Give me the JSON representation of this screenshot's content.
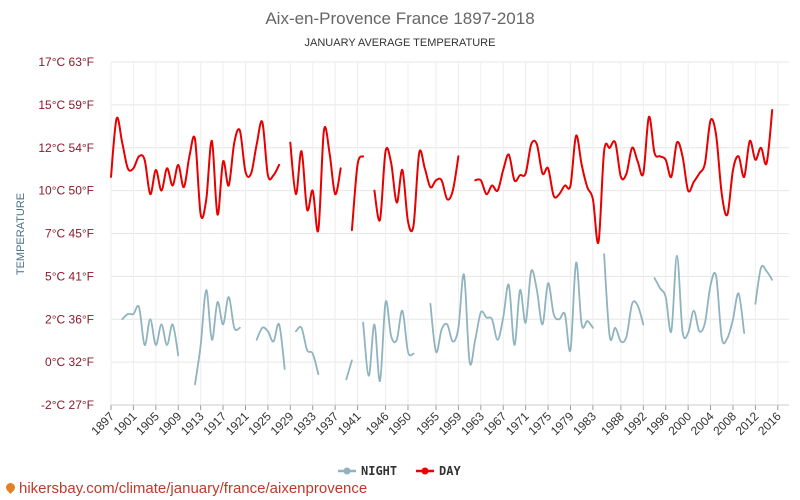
{
  "chart_data": {
    "type": "line",
    "title": "Aix-en-Provence France 1897-2018",
    "subtitle": "JANUARY AVERAGE TEMPERATURE",
    "ylabel": "TEMPERATURE",
    "ylim": [
      -2.5,
      17.5
    ],
    "yticks": [
      {
        "value": -2.5,
        "label": "-2°C 27°F"
      },
      {
        "value": 0,
        "label": "0°C 32°F"
      },
      {
        "value": 2.5,
        "label": "2°C 36°F"
      },
      {
        "value": 5,
        "label": "5°C 41°F"
      },
      {
        "value": 7.5,
        "label": "7°C 45°F"
      },
      {
        "value": 10,
        "label": "10°C 50°F"
      },
      {
        "value": 12.5,
        "label": "12°C 54°F"
      },
      {
        "value": 15,
        "label": "15°C 59°F"
      },
      {
        "value": 17.5,
        "label": "17°C 63°F"
      }
    ],
    "xlim": [
      1897,
      2018
    ],
    "xticks": [
      1897,
      1901,
      1905,
      1909,
      1913,
      1917,
      1921,
      1925,
      1929,
      1933,
      1937,
      1941,
      1946,
      1950,
      1955,
      1959,
      1963,
      1967,
      1971,
      1975,
      1979,
      1983,
      1988,
      1992,
      1996,
      2000,
      2004,
      2008,
      2012,
      2016
    ],
    "grid": true,
    "legend_position": "bottom-center",
    "series": [
      {
        "name": "NIGHT",
        "color": "#8fb3bf",
        "points": [
          [
            1899,
            2.5
          ],
          [
            1900,
            2.8
          ],
          [
            1901,
            2.8
          ],
          [
            1902,
            3.2
          ],
          [
            1903,
            1.0
          ],
          [
            1904,
            2.5
          ],
          [
            1905,
            1.0
          ],
          [
            1906,
            2.2
          ],
          [
            1907,
            1.0
          ],
          [
            1908,
            2.2
          ],
          [
            1909,
            0.4
          ],
          [
            1912,
            -1.3
          ],
          [
            1913,
            1.0
          ],
          [
            1914,
            4.2
          ],
          [
            1915,
            1.3
          ],
          [
            1916,
            3.5
          ],
          [
            1917,
            2.2
          ],
          [
            1918,
            3.8
          ],
          [
            1919,
            2.0
          ],
          [
            1920,
            2.0
          ],
          [
            1923,
            1.3
          ],
          [
            1924,
            2.0
          ],
          [
            1925,
            1.8
          ],
          [
            1926,
            1.2
          ],
          [
            1927,
            2.2
          ],
          [
            1928,
            -0.4
          ],
          [
            1930,
            1.8
          ],
          [
            1931,
            2.0
          ],
          [
            1932,
            0.7
          ],
          [
            1933,
            0.5
          ],
          [
            1934,
            -0.7
          ],
          [
            1939,
            -1.0
          ],
          [
            1940,
            0.1
          ],
          [
            1942,
            2.3
          ],
          [
            1943,
            -0.8
          ],
          [
            1944,
            2.2
          ],
          [
            1945,
            -1.1
          ],
          [
            1946,
            3.5
          ],
          [
            1947,
            1.5
          ],
          [
            1948,
            1.3
          ],
          [
            1949,
            3.0
          ],
          [
            1950,
            0.6
          ],
          [
            1951,
            0.5
          ],
          [
            1954,
            3.4
          ],
          [
            1955,
            0.6
          ],
          [
            1956,
            1.9
          ],
          [
            1957,
            2.2
          ],
          [
            1958,
            1.2
          ],
          [
            1959,
            2.0
          ],
          [
            1960,
            5.1
          ],
          [
            1961,
            0.0
          ],
          [
            1962,
            1.3
          ],
          [
            1963,
            2.9
          ],
          [
            1964,
            2.6
          ],
          [
            1965,
            2.5
          ],
          [
            1966,
            1.3
          ],
          [
            1967,
            2.6
          ],
          [
            1968,
            4.5
          ],
          [
            1969,
            1.0
          ],
          [
            1970,
            4.2
          ],
          [
            1971,
            2.3
          ],
          [
            1972,
            5.3
          ],
          [
            1973,
            4.2
          ],
          [
            1974,
            2.2
          ],
          [
            1975,
            4.6
          ],
          [
            1976,
            2.8
          ],
          [
            1977,
            2.5
          ],
          [
            1978,
            2.8
          ],
          [
            1979,
            0.7
          ],
          [
            1980,
            5.8
          ],
          [
            1981,
            2.2
          ],
          [
            1982,
            2.4
          ],
          [
            1983,
            2.0
          ],
          [
            1985,
            6.3
          ],
          [
            1986,
            1.5
          ],
          [
            1987,
            2.0
          ],
          [
            1988,
            1.2
          ],
          [
            1989,
            1.5
          ],
          [
            1990,
            3.4
          ],
          [
            1991,
            3.3
          ],
          [
            1992,
            2.2
          ],
          [
            1994,
            4.9
          ],
          [
            1995,
            4.3
          ],
          [
            1996,
            3.8
          ],
          [
            1997,
            1.8
          ],
          [
            1998,
            6.2
          ],
          [
            1999,
            1.8
          ],
          [
            2000,
            1.7
          ],
          [
            2001,
            3.0
          ],
          [
            2002,
            1.8
          ],
          [
            2003,
            2.3
          ],
          [
            2004,
            4.5
          ],
          [
            2005,
            5.0
          ],
          [
            2006,
            1.4
          ],
          [
            2007,
            1.4
          ],
          [
            2008,
            2.5
          ],
          [
            2009,
            4.0
          ],
          [
            2010,
            1.7
          ],
          [
            2012,
            3.4
          ],
          [
            2013,
            5.5
          ],
          [
            2014,
            5.3
          ],
          [
            2015,
            4.8
          ]
        ]
      },
      {
        "name": "DAY",
        "color": "#e60000",
        "points": [
          [
            1897,
            10.8
          ],
          [
            1898,
            14.2
          ],
          [
            1899,
            12.8
          ],
          [
            1900,
            11.3
          ],
          [
            1901,
            11.3
          ],
          [
            1902,
            12.0
          ],
          [
            1903,
            11.8
          ],
          [
            1904,
            9.8
          ],
          [
            1905,
            11.2
          ],
          [
            1906,
            10.0
          ],
          [
            1907,
            11.3
          ],
          [
            1908,
            10.3
          ],
          [
            1909,
            11.5
          ],
          [
            1910,
            10.2
          ],
          [
            1911,
            12.0
          ],
          [
            1912,
            13.0
          ],
          [
            1913,
            8.6
          ],
          [
            1914,
            9.5
          ],
          [
            1915,
            12.9
          ],
          [
            1916,
            8.6
          ],
          [
            1917,
            11.7
          ],
          [
            1918,
            10.3
          ],
          [
            1919,
            12.8
          ],
          [
            1920,
            13.5
          ],
          [
            1921,
            11.1
          ],
          [
            1922,
            11.0
          ],
          [
            1923,
            12.7
          ],
          [
            1924,
            14.0
          ],
          [
            1925,
            10.9
          ],
          [
            1926,
            10.9
          ],
          [
            1927,
            11.5
          ],
          [
            1929,
            12.8
          ],
          [
            1930,
            9.8
          ],
          [
            1931,
            12.3
          ],
          [
            1932,
            8.9
          ],
          [
            1933,
            10.0
          ],
          [
            1934,
            7.7
          ],
          [
            1935,
            13.5
          ],
          [
            1936,
            12.2
          ],
          [
            1937,
            9.8
          ],
          [
            1938,
            11.3
          ],
          [
            1940,
            7.7
          ],
          [
            1941,
            11.5
          ],
          [
            1942,
            12.0
          ],
          [
            1944,
            10.0
          ],
          [
            1945,
            8.3
          ],
          [
            1946,
            12.3
          ],
          [
            1947,
            11.6
          ],
          [
            1948,
            9.3
          ],
          [
            1949,
            11.2
          ],
          [
            1950,
            8.2
          ],
          [
            1951,
            8.0
          ],
          [
            1952,
            12.2
          ],
          [
            1953,
            11.3
          ],
          [
            1954,
            10.2
          ],
          [
            1955,
            10.6
          ],
          [
            1956,
            10.6
          ],
          [
            1957,
            9.5
          ],
          [
            1958,
            10.0
          ],
          [
            1959,
            12.0
          ],
          [
            1962,
            10.6
          ],
          [
            1963,
            10.6
          ],
          [
            1964,
            9.8
          ],
          [
            1965,
            10.3
          ],
          [
            1966,
            10.0
          ],
          [
            1967,
            11.2
          ],
          [
            1968,
            12.1
          ],
          [
            1969,
            10.6
          ],
          [
            1970,
            10.9
          ],
          [
            1971,
            11.0
          ],
          [
            1972,
            12.7
          ],
          [
            1973,
            12.7
          ],
          [
            1974,
            11.0
          ],
          [
            1975,
            11.3
          ],
          [
            1976,
            9.7
          ],
          [
            1977,
            9.8
          ],
          [
            1978,
            10.3
          ],
          [
            1979,
            10.3
          ],
          [
            1980,
            13.2
          ],
          [
            1981,
            11.5
          ],
          [
            1982,
            10.2
          ],
          [
            1983,
            9.5
          ],
          [
            1984,
            7.0
          ],
          [
            1985,
            12.3
          ],
          [
            1986,
            12.5
          ],
          [
            1987,
            12.8
          ],
          [
            1988,
            10.8
          ],
          [
            1989,
            11.0
          ],
          [
            1990,
            12.5
          ],
          [
            1991,
            11.7
          ],
          [
            1992,
            11.0
          ],
          [
            1993,
            14.3
          ],
          [
            1994,
            12.2
          ],
          [
            1995,
            12.0
          ],
          [
            1996,
            11.8
          ],
          [
            1997,
            10.8
          ],
          [
            1998,
            12.8
          ],
          [
            1999,
            12.0
          ],
          [
            2000,
            10.0
          ],
          [
            2001,
            10.5
          ],
          [
            2002,
            11.0
          ],
          [
            2003,
            11.6
          ],
          [
            2004,
            14.1
          ],
          [
            2005,
            13.2
          ],
          [
            2006,
            9.8
          ],
          [
            2007,
            8.6
          ],
          [
            2008,
            11.2
          ],
          [
            2009,
            12.0
          ],
          [
            2010,
            10.8
          ],
          [
            2011,
            12.9
          ],
          [
            2012,
            11.8
          ],
          [
            2013,
            12.5
          ],
          [
            2014,
            11.6
          ],
          [
            2015,
            14.7
          ]
        ]
      }
    ]
  },
  "legend": {
    "night_label": "NIGHT",
    "day_label": "DAY"
  },
  "source": {
    "text": "hikersbay.com/climate/january/france/aixenprovence",
    "pin_icon": "map-pin-icon"
  }
}
